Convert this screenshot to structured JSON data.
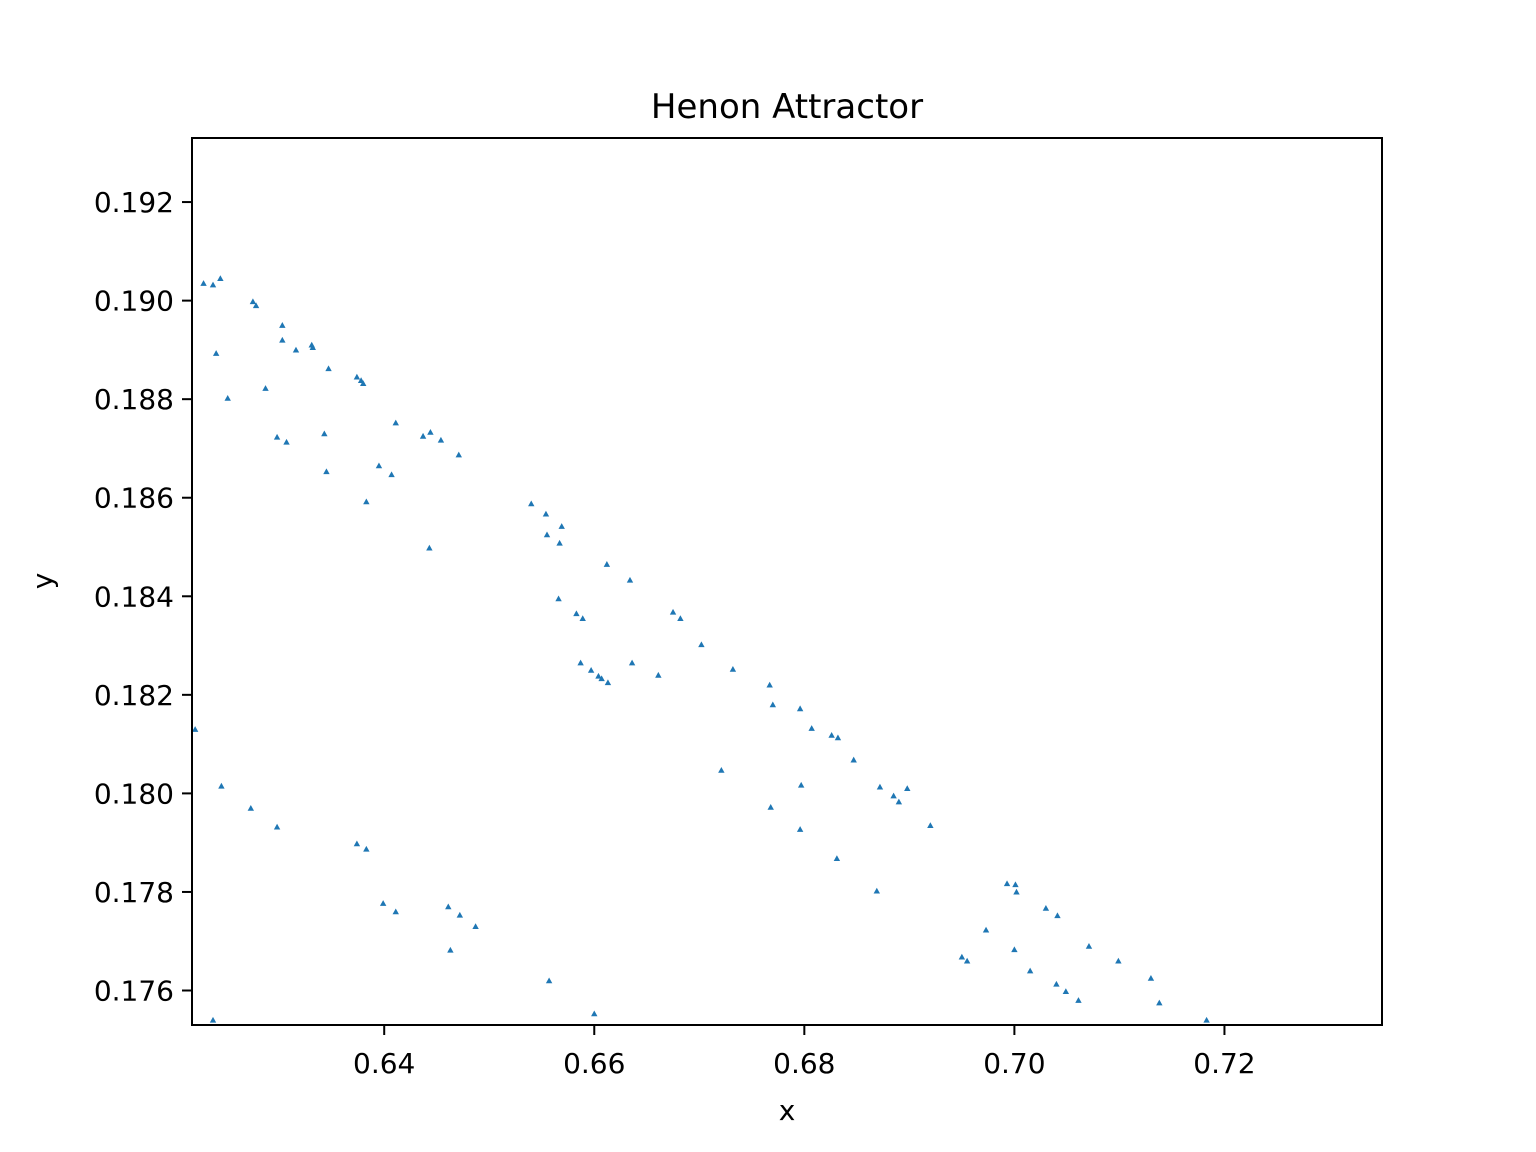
{
  "chart_data": {
    "type": "scatter",
    "title": "Henon Attractor",
    "xlabel": "x",
    "ylabel": "y",
    "xlim": [
      0.6217,
      0.735
    ],
    "ylim": [
      0.1753,
      0.1933
    ],
    "xticks": [
      0.64,
      0.66,
      0.68,
      0.7,
      0.72
    ],
    "xtick_labels": [
      "0.64",
      "0.66",
      "0.68",
      "0.70",
      "0.72"
    ],
    "yticks": [
      0.176,
      0.178,
      0.18,
      0.182,
      0.184,
      0.186,
      0.188,
      0.19,
      0.192
    ],
    "ytick_labels": [
      "0.176",
      "0.178",
      "0.180",
      "0.182",
      "0.184",
      "0.186",
      "0.188",
      "0.190",
      "0.192"
    ],
    "grid": false,
    "marker": "triangle",
    "color": "#1f77b4",
    "series": [
      {
        "x": [
          0.6228,
          0.6237,
          0.6244,
          0.6275,
          0.6278,
          0.6303,
          0.6303,
          0.6316,
          0.6331,
          0.6332,
          0.6347,
          0.6374,
          0.6378,
          0.638,
          0.624,
          0.6251,
          0.6287,
          0.6298,
          0.6307,
          0.6343,
          0.6411,
          0.6437,
          0.6444,
          0.6454,
          0.6471,
          0.6345,
          0.6395,
          0.6407,
          0.6383,
          0.6443,
          0.654,
          0.6554,
          0.6569,
          0.6555,
          0.6567,
          0.6612,
          0.6634,
          0.6566,
          0.6583,
          0.6589,
          0.6675,
          0.6682,
          0.6702,
          0.6587,
          0.6597,
          0.6604,
          0.6607,
          0.6613,
          0.6636,
          0.6661,
          0.6732,
          0.6767,
          0.677,
          0.6796,
          0.6807,
          0.6826,
          0.6832,
          0.6847,
          0.6872,
          0.6885,
          0.689,
          0.6898,
          0.692,
          0.6721,
          0.6768,
          0.6797,
          0.6796,
          0.6831,
          0.6869,
          0.6993,
          0.7001,
          0.7002,
          0.703,
          0.7041,
          0.6973,
          0.7,
          0.695,
          0.6955,
          0.7015,
          0.7071,
          0.7099,
          0.704,
          0.7049,
          0.7061,
          0.713,
          0.7138,
          0.7183,
          0.622,
          0.6245,
          0.6273,
          0.6298,
          0.6374,
          0.6383,
          0.6399,
          0.6411,
          0.6461,
          0.6472,
          0.6487,
          0.6463,
          0.6557,
          0.66,
          0.6237
        ],
        "y": [
          0.19035,
          0.19032,
          0.19045,
          0.18998,
          0.1899,
          0.1895,
          0.1892,
          0.189,
          0.1891,
          0.18905,
          0.18862,
          0.18845,
          0.18838,
          0.18832,
          0.18893,
          0.18802,
          0.18822,
          0.18723,
          0.18713,
          0.1873,
          0.18752,
          0.18725,
          0.18733,
          0.18717,
          0.18687,
          0.18653,
          0.18665,
          0.18647,
          0.18592,
          0.18498,
          0.18588,
          0.18567,
          0.18542,
          0.18525,
          0.18508,
          0.18465,
          0.18433,
          0.18395,
          0.18365,
          0.18355,
          0.18368,
          0.18355,
          0.18302,
          0.18265,
          0.1825,
          0.18238,
          0.18233,
          0.18225,
          0.18265,
          0.1824,
          0.18252,
          0.1822,
          0.1818,
          0.18172,
          0.18132,
          0.18118,
          0.18113,
          0.18068,
          0.18013,
          0.17995,
          0.17983,
          0.1801,
          0.17935,
          0.18047,
          0.17972,
          0.18017,
          0.17927,
          0.17868,
          0.17802,
          0.17817,
          0.17815,
          0.178,
          0.17767,
          0.17752,
          0.17723,
          0.17683,
          0.17668,
          0.1766,
          0.1764,
          0.1769,
          0.1766,
          0.17613,
          0.17598,
          0.1758,
          0.17625,
          0.17575,
          0.1754,
          0.1813,
          0.18015,
          0.1797,
          0.17932,
          0.17898,
          0.17887,
          0.17777,
          0.1776,
          0.1777,
          0.17753,
          0.1773,
          0.17682,
          0.1762,
          0.17553,
          0.1754
        ]
      }
    ]
  }
}
